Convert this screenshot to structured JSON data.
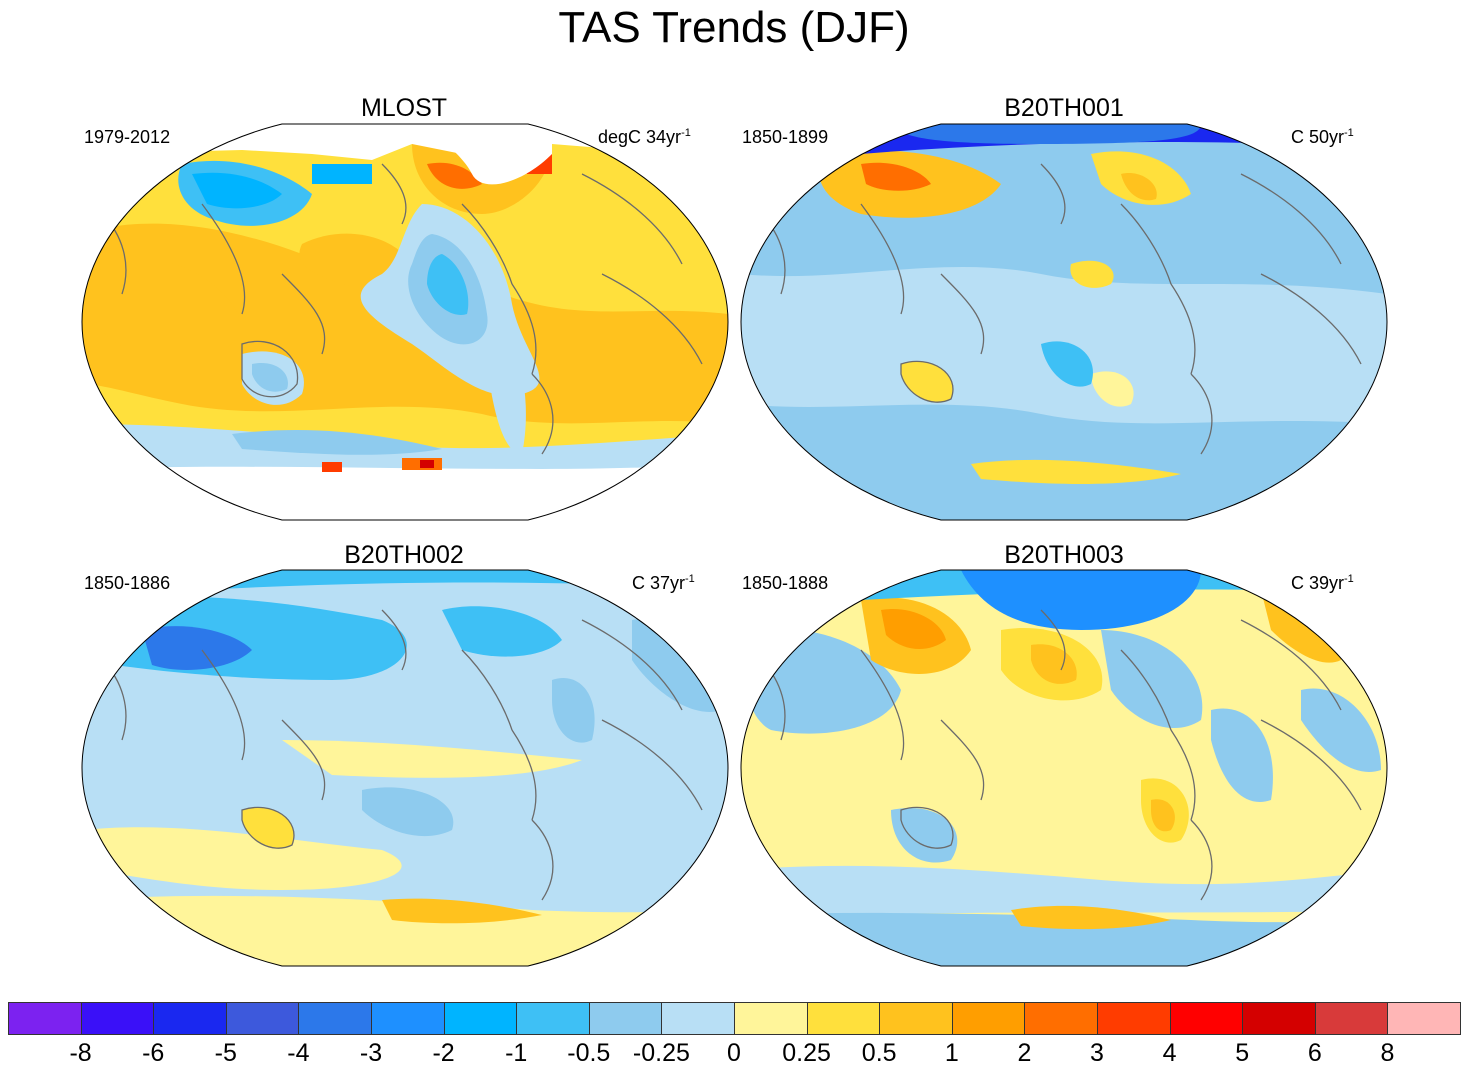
{
  "title": "TAS Trends (DJF)",
  "panels": [
    {
      "name": "MLOST",
      "period": "1979-2012",
      "units_prefix": "degC 34yr",
      "units_exp": "-1"
    },
    {
      "name": "B20TH001",
      "period": "1850-1899",
      "units_prefix": "C 50yr",
      "units_exp": "-1"
    },
    {
      "name": "B20TH002",
      "period": "1850-1886",
      "units_prefix": "C 37yr",
      "units_exp": "-1"
    },
    {
      "name": "B20TH003",
      "period": "1850-1888",
      "units_prefix": "C 39yr",
      "units_exp": "-1"
    }
  ],
  "colorbar": {
    "labels": [
      "-8",
      "-6",
      "-5",
      "-4",
      "-3",
      "-2",
      "-1",
      "-0.5",
      "-0.25",
      "0",
      "0.25",
      "0.5",
      "1",
      "2",
      "3",
      "4",
      "5",
      "6",
      "8"
    ],
    "colors": [
      "#7c22f0",
      "#3a10f8",
      "#1a28f0",
      "#3d59dc",
      "#2c78ea",
      "#1e90ff",
      "#00b4ff",
      "#3ec0f5",
      "#8ecbee",
      "#b8dff5",
      "#fff59a",
      "#ffe03c",
      "#ffc21e",
      "#ff9e00",
      "#ff6e00",
      "#ff3c00",
      "#ff0000",
      "#d40000",
      "#d83a3a",
      "#ffb6b6"
    ]
  },
  "map_palette": {
    "ocean_neutral": "#b8dff5",
    "coast": "#6b6b6b",
    "missing": "#ffffff"
  }
}
